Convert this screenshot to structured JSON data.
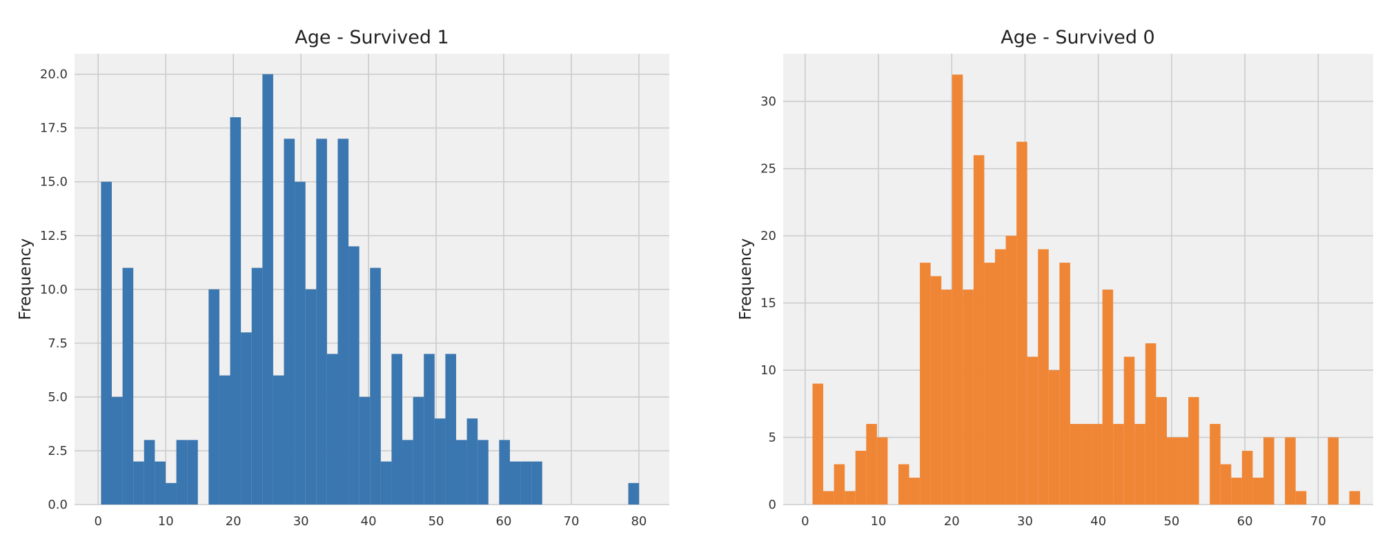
{
  "chart_data": [
    {
      "type": "bar",
      "title": "Age - Survived 1",
      "xlabel": "",
      "ylabel": "Frequency",
      "xlim": [
        -3.5,
        84.5
      ],
      "ylim": [
        0,
        20.95
      ],
      "xticks": [
        "0",
        "10",
        "20",
        "30",
        "40",
        "50",
        "60",
        "70",
        "80"
      ],
      "yticks": [
        "0.0",
        "2.5",
        "5.0",
        "7.5",
        "10.0",
        "12.5",
        "15.0",
        "17.5",
        "20.0"
      ],
      "grid": true,
      "colors": {
        "bar": "#3a76af",
        "background": "#f0f0f0",
        "grid": "#cbcbcb"
      },
      "bin_start": 0.42,
      "bin_width": 1.592,
      "values": [
        15,
        5,
        11,
        2,
        3,
        2,
        1,
        3,
        3,
        0,
        10,
        6,
        18,
        8,
        11,
        20,
        6,
        17,
        15,
        10,
        17,
        7,
        17,
        12,
        5,
        11,
        2,
        7,
        3,
        5,
        7,
        4,
        7,
        3,
        4,
        3,
        0,
        3,
        2,
        2,
        2,
        0,
        0,
        0,
        0,
        0,
        0,
        0,
        0,
        1
      ]
    },
    {
      "type": "bar",
      "title": "Age - Survived 0",
      "xlabel": "",
      "ylabel": "Frequency",
      "xlim": [
        -3,
        77.5
      ],
      "ylim": [
        0,
        33.55
      ],
      "xticks": [
        "0",
        "10",
        "20",
        "30",
        "40",
        "50",
        "60",
        "70"
      ],
      "yticks": [
        "0",
        "5",
        "10",
        "15",
        "20",
        "25",
        "30"
      ],
      "grid": true,
      "colors": {
        "bar": "#ef8636",
        "background": "#f0f0f0",
        "grid": "#cbcbcb"
      },
      "bin_start": 1,
      "bin_width": 1.465,
      "values": [
        9,
        1,
        3,
        1,
        4,
        6,
        5,
        0,
        3,
        2,
        18,
        17,
        16,
        32,
        16,
        26,
        18,
        19,
        20,
        27,
        11,
        19,
        10,
        18,
        6,
        6,
        6,
        16,
        6,
        11,
        6,
        12,
        8,
        5,
        5,
        8,
        0,
        6,
        3,
        2,
        4,
        2,
        5,
        0,
        5,
        1,
        0,
        0,
        5,
        0,
        1
      ]
    }
  ]
}
